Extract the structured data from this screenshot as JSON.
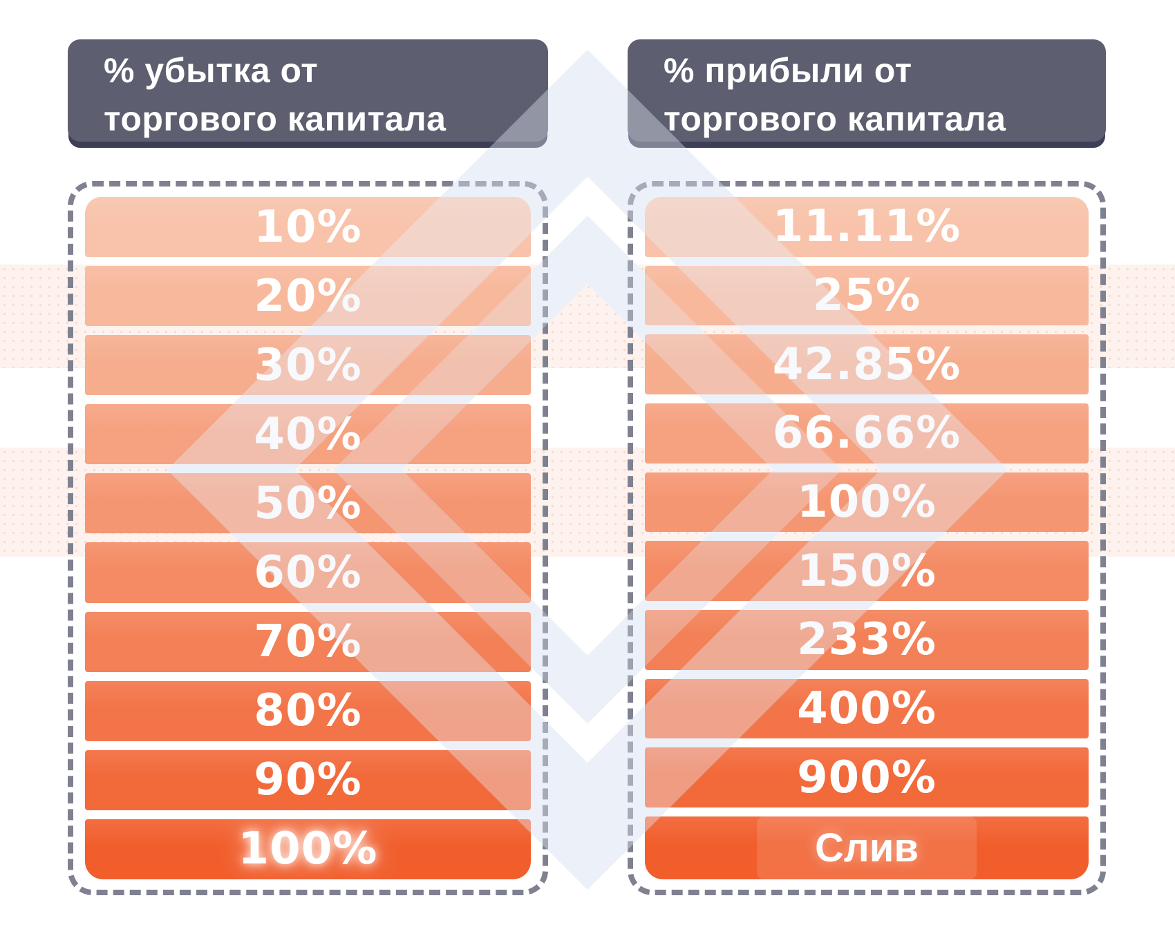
{
  "headers": {
    "loss": {
      "line1": "% убытка от",
      "line2": "торгового капитала"
    },
    "profit": {
      "line1": "% прибыли от",
      "line2": "торгового капитала"
    }
  },
  "table": {
    "loss_rows": [
      {
        "label": "10%",
        "color": "#f8c3aa"
      },
      {
        "label": "20%",
        "color": "#f7b89c"
      },
      {
        "label": "30%",
        "color": "#f6ad8e"
      },
      {
        "label": "40%",
        "color": "#f6a180"
      },
      {
        "label": "50%",
        "color": "#f59672"
      },
      {
        "label": "60%",
        "color": "#f48b64"
      },
      {
        "label": "70%",
        "color": "#f38056"
      },
      {
        "label": "80%",
        "color": "#f37448"
      },
      {
        "label": "90%",
        "color": "#f2693a"
      },
      {
        "label": "100%",
        "color": "#f15e2c",
        "glow": true
      }
    ],
    "profit_rows": [
      {
        "label": "11.11%",
        "color": "#f8c3aa"
      },
      {
        "label": "25%",
        "color": "#f7b89c"
      },
      {
        "label": "42.85%",
        "color": "#f6ad8e"
      },
      {
        "label": "66.66%",
        "color": "#f6a180"
      },
      {
        "label": "100%",
        "color": "#f59672"
      },
      {
        "label": "150%",
        "color": "#f48b64"
      },
      {
        "label": "233%",
        "color": "#f38056"
      },
      {
        "label": "400%",
        "color": "#f37448"
      },
      {
        "label": "900%",
        "color": "#f2693a"
      },
      {
        "label": "Слив",
        "color": "#f15e2c",
        "highlight": true
      }
    ]
  },
  "colors": {
    "background": "#ffffff",
    "header_bg": "#5d5f70",
    "header_shadow": "#3d3f57",
    "header_text": "#ffffff",
    "dashed_border": "#7f8190",
    "row_text": "#ffffff",
    "row_gradient_start": "#f8c3aa",
    "row_gradient_end": "#f15e2c",
    "watermark_blue": "#eef2f9",
    "watermark_pink": "#fdf2ed"
  },
  "chart_data": {
    "type": "table",
    "title": "",
    "columns": [
      "% убытка от торгового капитала",
      "% прибыли от торгового капитала"
    ],
    "rows": [
      [
        "10%",
        "11.11%"
      ],
      [
        "20%",
        "25%"
      ],
      [
        "30%",
        "42.85%"
      ],
      [
        "40%",
        "66.66%"
      ],
      [
        "50%",
        "100%"
      ],
      [
        "60%",
        "150%"
      ],
      [
        "70%",
        "233%"
      ],
      [
        "80%",
        "400%"
      ],
      [
        "90%",
        "900%"
      ],
      [
        "100%",
        "Слив"
      ]
    ],
    "layout": "two dashed rounded columns, rows shaded light-to-dark orange top-to-bottom, grid off, no axes"
  }
}
